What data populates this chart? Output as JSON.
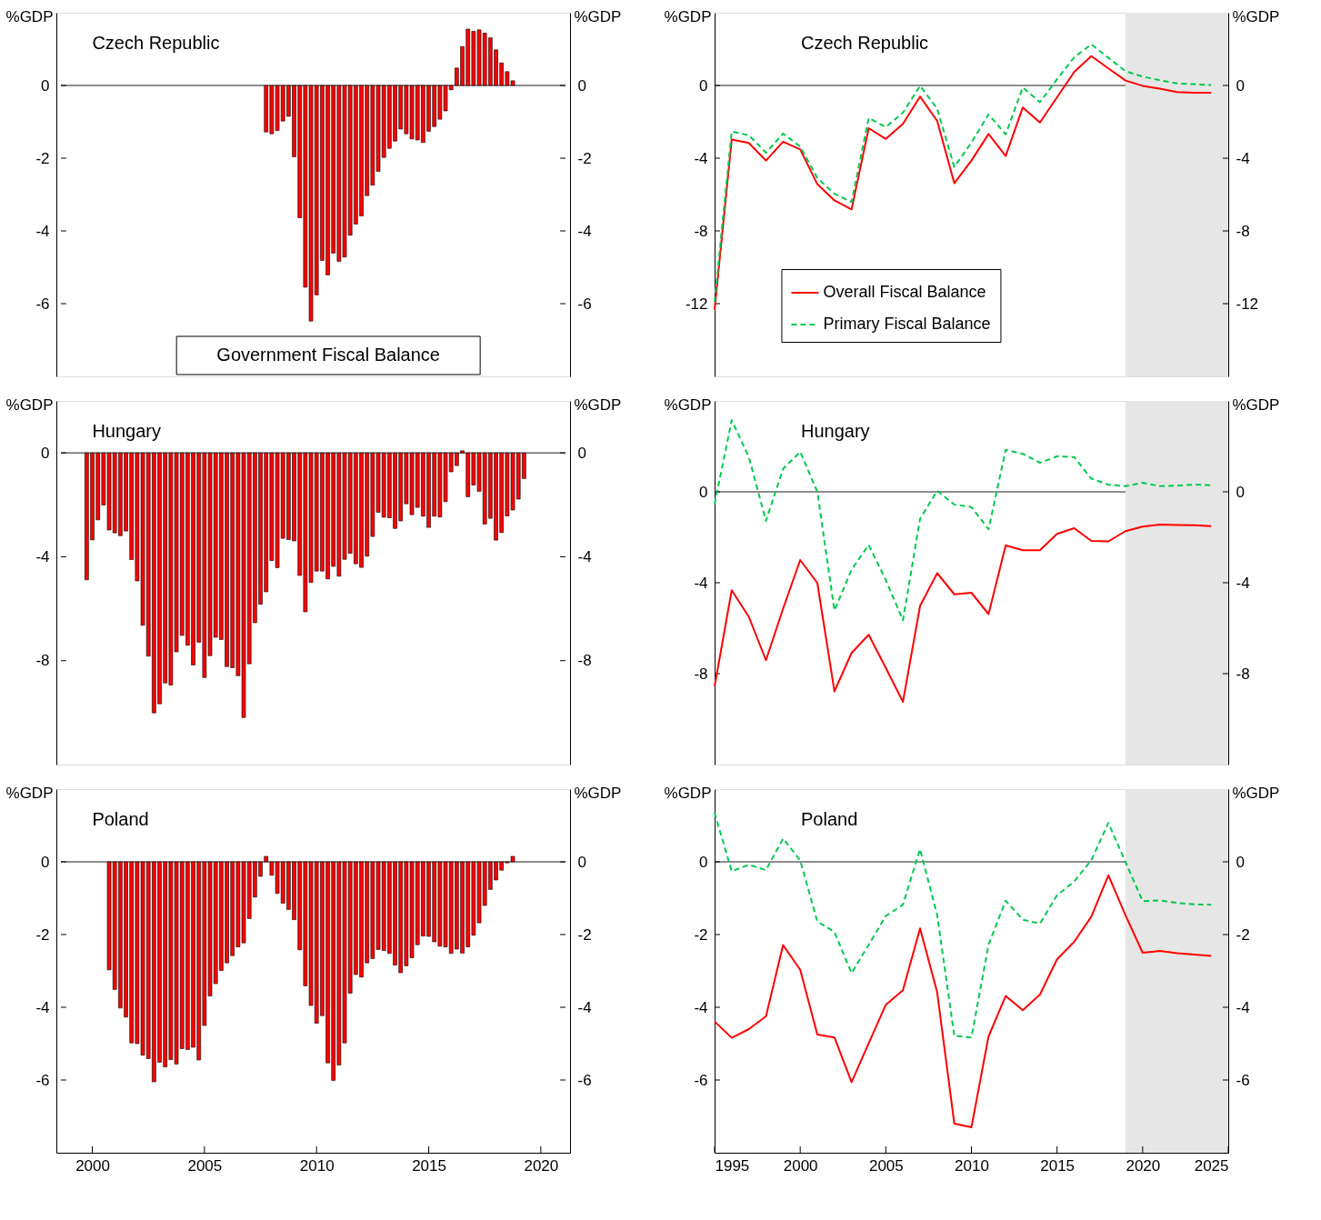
{
  "chart_data": [
    {
      "type": "bar",
      "title": "Czech Republic",
      "ylabel": "%GDP",
      "y2label": "%GDP",
      "annotations": [
        "Government Fiscal Balance"
      ],
      "tick_labels": "y",
      "legend": false,
      "grid": false,
      "x": [
        2007.75,
        2008,
        2008.25,
        2008.5,
        2008.75,
        2009,
        2009.25,
        2009.5,
        2009.75,
        2010,
        2010.25,
        2010.5,
        2010.75,
        2011,
        2011.25,
        2011.5,
        2011.75,
        2012,
        2012.25,
        2012.5,
        2012.75,
        2013,
        2013.25,
        2013.5,
        2013.75,
        2014,
        2014.25,
        2014.5,
        2014.75,
        2015,
        2015.25,
        2015.5,
        2015.75,
        2016,
        2016.25,
        2016.5,
        2016.75,
        2017,
        2017.25,
        2017.5,
        2017.75,
        2018,
        2018.25,
        2018.5,
        2018.75
      ],
      "series": [
        {
          "color": "#ff0000",
          "values": [
            -1.28,
            -1.33,
            -1.24,
            -0.98,
            -0.85,
            -1.96,
            -3.64,
            -5.55,
            -6.48,
            -5.76,
            -4.81,
            -5.21,
            -4.61,
            -4.84,
            -4.72,
            -4.12,
            -3.81,
            -3.59,
            -3.03,
            -2.74,
            -2.36,
            -1.98,
            -1.73,
            -1.53,
            -1.2,
            -1.33,
            -1.47,
            -1.5,
            -1.57,
            -1.26,
            -1.13,
            -0.93,
            -0.7,
            -0.12,
            0.48,
            1.07,
            1.55,
            1.49,
            1.53,
            1.44,
            1.31,
            0.98,
            0.62,
            0.38,
            0.13
          ]
        }
      ],
      "xlim": [
        1998.6,
        2021.1
      ],
      "xticks": [
        2000,
        2005,
        2010,
        2015,
        2020
      ],
      "ylim": [
        -8,
        2
      ],
      "yticks": [
        -6,
        -4,
        -2,
        0
      ],
      "y2lim": [
        -8,
        2
      ],
      "y2ticks": [
        -6,
        -4,
        -2,
        0
      ],
      "ref_lines": [
        {
          "axis": "y",
          "value": 0
        }
      ]
    },
    {
      "type": "line",
      "title": "Czech Republic",
      "ylabel": "%GDP",
      "y2label": "%GDP",
      "tick_labels": "y",
      "legend": "bottom",
      "grid": false,
      "x": [
        1995,
        1996,
        1997,
        1998,
        1999,
        2000,
        2001,
        2002,
        2003,
        2004,
        2005,
        2006,
        2007,
        2008,
        2009,
        2010,
        2011,
        2012,
        2013,
        2014,
        2015,
        2016,
        2017,
        2018,
        2019,
        2020,
        2021,
        2022,
        2023,
        2024
      ],
      "series": [
        {
          "name": "Overall Fiscal Balance",
          "color": "#ff0000",
          "line_style": "solid",
          "values": [
            -12.33,
            -2.98,
            -3.16,
            -4.13,
            -3.09,
            -3.52,
            -5.43,
            -6.32,
            -6.82,
            -2.35,
            -2.94,
            -2.11,
            -0.61,
            -1.95,
            -5.38,
            -4.13,
            -2.67,
            -3.88,
            -1.21,
            -2.04,
            -0.65,
            0.74,
            1.61,
            0.94,
            0.27,
            -0.02,
            -0.18,
            -0.36,
            -0.4,
            -0.4
          ]
        },
        {
          "name": "Primary Fiscal Balance",
          "color": "#00c850",
          "line_style": "dashed",
          "values": [
            -11.9,
            -2.53,
            -2.74,
            -3.7,
            -2.65,
            -3.36,
            -5.09,
            -5.96,
            -6.41,
            -1.79,
            -2.29,
            -1.5,
            -0.02,
            -1.28,
            -4.48,
            -3.14,
            -1.59,
            -2.69,
            -0.11,
            -0.92,
            0.34,
            1.55,
            2.26,
            1.52,
            0.78,
            0.49,
            0.29,
            0.11,
            0.07,
            0.02
          ]
        }
      ],
      "xlim": [
        1995,
        2025
      ],
      "xticks": [
        1995,
        2000,
        2005,
        2010,
        2015,
        2020,
        2025
      ],
      "ylim": [
        -16,
        4
      ],
      "yticks": [
        -12,
        -8,
        -4,
        0
      ],
      "y2lim": [
        -16,
        4
      ],
      "y2ticks": [
        -12,
        -8,
        -4,
        0
      ],
      "ref_lines": [
        {
          "axis": "y",
          "value": 0
        }
      ],
      "bands": [
        {
          "axis": "x",
          "from": 2019,
          "to": 2025,
          "color": "#e6e6e6"
        }
      ]
    },
    {
      "type": "bar",
      "title": "Hungary",
      "ylabel": "%GDP",
      "y2label": "%GDP",
      "tick_labels": "y",
      "legend": false,
      "grid": false,
      "x": [
        1999.75,
        2000,
        2000.25,
        2000.5,
        2000.75,
        2001,
        2001.25,
        2001.5,
        2001.75,
        2002,
        2002.25,
        2002.5,
        2002.75,
        2003,
        2003.25,
        2003.5,
        2003.75,
        2004,
        2004.25,
        2004.5,
        2004.75,
        2005,
        2005.25,
        2005.5,
        2005.75,
        2006,
        2006.25,
        2006.5,
        2006.75,
        2007,
        2007.25,
        2007.5,
        2007.75,
        2008,
        2008.25,
        2008.5,
        2008.75,
        2009,
        2009.25,
        2009.5,
        2009.75,
        2010,
        2010.25,
        2010.5,
        2010.75,
        2011,
        2011.25,
        2011.5,
        2011.75,
        2012,
        2012.25,
        2012.5,
        2012.75,
        2013,
        2013.25,
        2013.5,
        2013.75,
        2014,
        2014.25,
        2014.5,
        2014.75,
        2015,
        2015.25,
        2015.5,
        2015.75,
        2016,
        2016.25,
        2016.5,
        2016.75,
        2017,
        2017.25,
        2017.5,
        2017.75,
        2018,
        2018.25,
        2018.5,
        2018.75,
        2019,
        2019.25
      ],
      "series": [
        {
          "color": "#ff0000",
          "values": [
            -4.89,
            -3.35,
            -2.58,
            -2.01,
            -2.97,
            -3.08,
            -3.19,
            -3.01,
            -4.11,
            -4.93,
            -6.64,
            -7.83,
            -10.01,
            -9.66,
            -8.86,
            -8.94,
            -7.66,
            -7.03,
            -7.41,
            -8.17,
            -7.29,
            -8.65,
            -7.81,
            -7.1,
            -7.19,
            -8.23,
            -8.27,
            -8.58,
            -10.19,
            -8.12,
            -6.54,
            -5.83,
            -5.35,
            -4.15,
            -4.42,
            -3.29,
            -3.34,
            -3.39,
            -4.72,
            -6.12,
            -4.99,
            -4.55,
            -4.55,
            -4.85,
            -4.37,
            -4.75,
            -4.1,
            -3.87,
            -4.27,
            -4.41,
            -3.98,
            -3.22,
            -2.29,
            -2.48,
            -2.5,
            -2.91,
            -2.62,
            -1.96,
            -2.38,
            -2.1,
            -2.44,
            -2.87,
            -2.44,
            -2.47,
            -1.88,
            -0.73,
            -0.49,
            0.08,
            -1.69,
            -1.24,
            -1.48,
            -2.74,
            -2.52,
            -3.36,
            -3.07,
            -2.43,
            -2.2,
            -1.78,
            -0.99
          ]
        }
      ],
      "xlim": [
        1998.6,
        2021.1
      ],
      "xticks": [
        2000,
        2005,
        2010,
        2015,
        2020
      ],
      "ylim": [
        -12,
        2
      ],
      "yticks": [
        -8,
        -4,
        0
      ],
      "y2lim": [
        -12,
        2
      ],
      "y2ticks": [
        -8,
        -4,
        0
      ],
      "ref_lines": [
        {
          "axis": "y",
          "value": 0
        }
      ]
    },
    {
      "type": "line",
      "title": "Hungary",
      "ylabel": "%GDP",
      "y2label": "%GDP",
      "tick_labels": "y",
      "legend": false,
      "grid": false,
      "x": [
        1995,
        1996,
        1997,
        1998,
        1999,
        2000,
        2001,
        2002,
        2003,
        2004,
        2005,
        2006,
        2007,
        2008,
        2009,
        2010,
        2011,
        2012,
        2013,
        2014,
        2015,
        2016,
        2017,
        2018,
        2019,
        2020,
        2021,
        2022,
        2023,
        2024
      ],
      "series": [
        {
          "color": "#ff0000",
          "line_style": "solid",
          "values": [
            -8.56,
            -4.33,
            -5.5,
            -7.41,
            -5.14,
            -3.0,
            -4.01,
            -8.78,
            -7.09,
            -6.29,
            -7.75,
            -9.24,
            -5.02,
            -3.58,
            -4.51,
            -4.44,
            -5.38,
            -2.36,
            -2.57,
            -2.57,
            -1.85,
            -1.6,
            -2.16,
            -2.18,
            -1.73,
            -1.53,
            -1.44,
            -1.46,
            -1.47,
            -1.51
          ]
        },
        {
          "color": "#00c850",
          "line_style": "dashed",
          "values": [
            -0.54,
            3.15,
            1.53,
            -1.28,
            1.01,
            1.76,
            0.0,
            -5.22,
            -3.42,
            -2.34,
            -3.88,
            -5.65,
            -1.19,
            0.04,
            -0.56,
            -0.67,
            -1.65,
            1.85,
            1.67,
            1.28,
            1.56,
            1.53,
            0.58,
            0.31,
            0.25,
            0.4,
            0.25,
            0.27,
            0.32,
            0.29
          ]
        }
      ],
      "xlim": [
        1995,
        2025
      ],
      "xticks": [
        1995,
        2000,
        2005,
        2010,
        2015,
        2020,
        2025
      ],
      "ylim": [
        -12,
        4
      ],
      "yticks": [
        -8,
        -4,
        0
      ],
      "y2lim": [
        -12,
        4
      ],
      "y2ticks": [
        -8,
        -4,
        0
      ],
      "ref_lines": [
        {
          "axis": "y",
          "value": 0
        }
      ],
      "bands": [
        {
          "axis": "x",
          "from": 2019,
          "to": 2025,
          "color": "#e6e6e6"
        }
      ]
    },
    {
      "type": "bar",
      "title": "Poland",
      "ylabel": "%GDP",
      "y2label": "%GDP",
      "legend": false,
      "grid": false,
      "x": [
        2000.75,
        2001,
        2001.25,
        2001.5,
        2001.75,
        2002,
        2002.25,
        2002.5,
        2002.75,
        2003,
        2003.25,
        2003.5,
        2003.75,
        2004,
        2004.25,
        2004.5,
        2004.75,
        2005,
        2005.25,
        2005.5,
        2005.75,
        2006,
        2006.25,
        2006.5,
        2006.75,
        2007,
        2007.25,
        2007.5,
        2007.75,
        2008,
        2008.25,
        2008.5,
        2008.75,
        2009,
        2009.25,
        2009.5,
        2009.75,
        2010,
        2010.25,
        2010.5,
        2010.75,
        2011,
        2011.25,
        2011.5,
        2011.75,
        2012,
        2012.25,
        2012.5,
        2012.75,
        2013,
        2013.25,
        2013.5,
        2013.75,
        2014,
        2014.25,
        2014.5,
        2014.75,
        2015,
        2015.25,
        2015.5,
        2015.75,
        2016,
        2016.25,
        2016.5,
        2016.75,
        2017,
        2017.25,
        2017.5,
        2017.75,
        2018,
        2018.25,
        2018.5,
        2018.75
      ],
      "series": [
        {
          "color": "#ff0000",
          "values": [
            -2.97,
            -3.51,
            -4.02,
            -4.27,
            -4.98,
            -5.0,
            -5.32,
            -5.41,
            -6.05,
            -5.51,
            -5.64,
            -5.44,
            -5.56,
            -5.14,
            -5.16,
            -5.1,
            -5.45,
            -4.5,
            -3.69,
            -3.35,
            -2.99,
            -2.78,
            -2.58,
            -2.34,
            -2.23,
            -1.56,
            -0.97,
            -0.4,
            0.15,
            -0.37,
            -0.87,
            -1.14,
            -1.31,
            -1.59,
            -2.42,
            -3.41,
            -3.95,
            -4.44,
            -4.23,
            -5.53,
            -6.01,
            -5.59,
            -4.98,
            -3.61,
            -3.1,
            -3.17,
            -2.78,
            -2.66,
            -2.41,
            -2.44,
            -2.52,
            -2.84,
            -3.05,
            -2.86,
            -2.64,
            -2.28,
            -2.04,
            -2.05,
            -2.2,
            -2.32,
            -2.34,
            -2.52,
            -2.4,
            -2.51,
            -2.34,
            -2.02,
            -1.68,
            -1.2,
            -0.76,
            -0.5,
            -0.23,
            -0.03,
            0.15
          ]
        }
      ],
      "xlim": [
        1998.6,
        2021.1
      ],
      "xticks": [
        2000,
        2005,
        2010,
        2015,
        2020
      ],
      "ylim": [
        -8,
        2
      ],
      "yticks": [
        -6,
        -4,
        -2,
        0
      ],
      "y2lim": [
        -8,
        2
      ],
      "y2ticks": [
        -6,
        -4,
        -2,
        0
      ],
      "ref_lines": [
        {
          "axis": "y",
          "value": 0
        }
      ]
    },
    {
      "type": "line",
      "title": "Poland",
      "ylabel": "%GDP",
      "y2label": "%GDP",
      "legend": false,
      "grid": false,
      "x": [
        1995,
        1996,
        1997,
        1998,
        1999,
        2000,
        2001,
        2002,
        2003,
        2004,
        2005,
        2006,
        2007,
        2008,
        2009,
        2010,
        2011,
        2012,
        2013,
        2014,
        2015,
        2016,
        2017,
        2018,
        2019,
        2020,
        2021,
        2022,
        2023,
        2024
      ],
      "series": [
        {
          "color": "#ff0000",
          "line_style": "solid",
          "values": [
            -4.39,
            -4.84,
            -4.6,
            -4.25,
            -2.29,
            -2.97,
            -4.75,
            -4.83,
            -6.06,
            -4.99,
            -3.93,
            -3.53,
            -1.83,
            -3.59,
            -7.2,
            -7.3,
            -4.8,
            -3.69,
            -4.08,
            -3.65,
            -2.68,
            -2.2,
            -1.51,
            -0.37,
            -1.47,
            -2.5,
            -2.45,
            -2.51,
            -2.55,
            -2.59
          ]
        },
        {
          "color": "#00c850",
          "line_style": "dashed",
          "values": [
            1.35,
            -0.26,
            -0.08,
            -0.23,
            0.64,
            0.04,
            -1.64,
            -1.93,
            -3.06,
            -2.28,
            -1.49,
            -1.18,
            0.35,
            -1.46,
            -4.79,
            -4.83,
            -2.28,
            -1.07,
            -1.59,
            -1.7,
            -0.92,
            -0.54,
            0.04,
            1.07,
            -0.01,
            -1.08,
            -1.06,
            -1.13,
            -1.17,
            -1.18
          ]
        }
      ],
      "xlim": [
        1995,
        2025
      ],
      "xticks": [
        1995,
        2000,
        2005,
        2010,
        2015,
        2020,
        2025
      ],
      "ylim": [
        -8,
        2
      ],
      "yticks": [
        -6,
        -4,
        -2,
        0
      ],
      "y2lim": [
        -8,
        2
      ],
      "y2ticks": [
        -6,
        -4,
        -2,
        0
      ],
      "ref_lines": [
        {
          "axis": "y",
          "value": 0
        }
      ],
      "bands": [
        {
          "axis": "x",
          "from": 2019,
          "to": 2025,
          "color": "#e6e6e6"
        }
      ]
    }
  ]
}
